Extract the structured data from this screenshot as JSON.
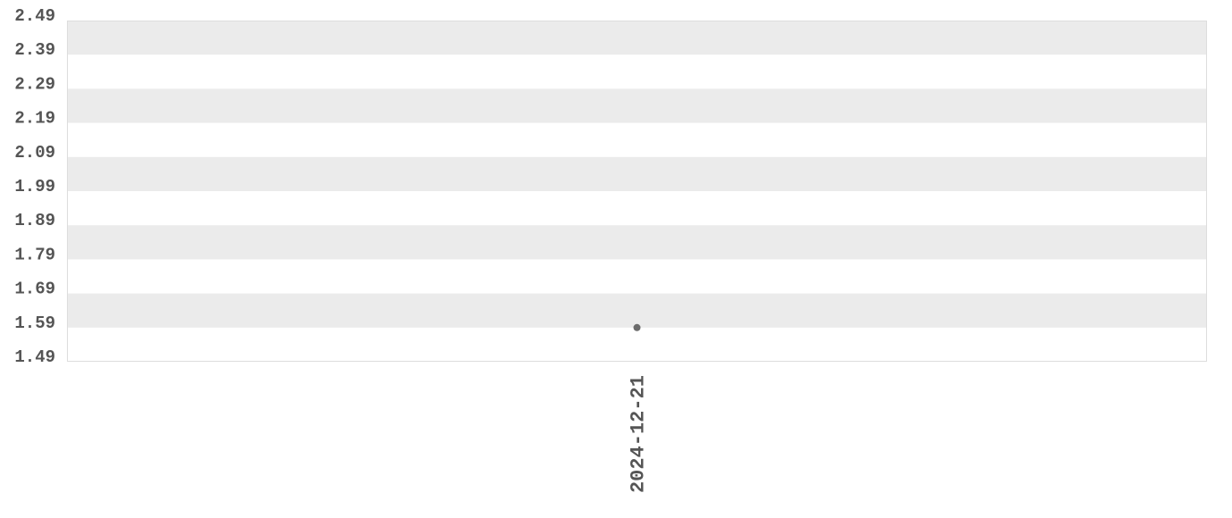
{
  "chart_data": {
    "type": "scatter",
    "title": "",
    "xlabel": "",
    "ylabel": "",
    "categories": [
      "2024-12-21"
    ],
    "x_tick_labels": [
      "2024-12-21"
    ],
    "y_tick_labels": [
      "2.49",
      "2.39",
      "2.29",
      "2.19",
      "2.09",
      "1.99",
      "1.89",
      "1.79",
      "1.69",
      "1.59",
      "1.49"
    ],
    "ylim": [
      1.49,
      2.49
    ],
    "grid": "alternating horizontal bands",
    "legend": "none",
    "series": [
      {
        "points": [
          {
            "x": "2024-12-21",
            "y": 1.59
          }
        ]
      }
    ],
    "colors": {
      "band": "#ebebeb",
      "point": "#6b6b6b",
      "text": "#555555",
      "border": "#dddddd"
    }
  }
}
